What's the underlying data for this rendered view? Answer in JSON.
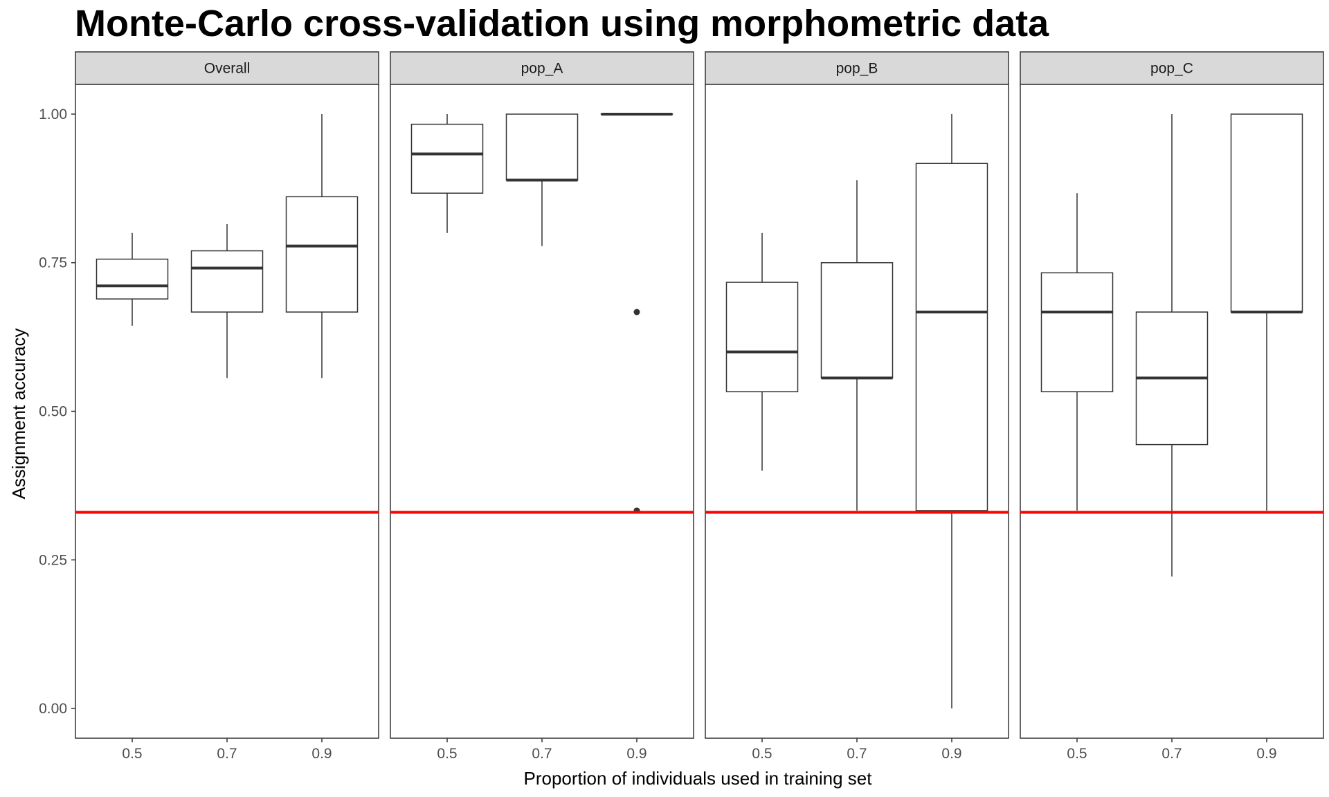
{
  "chart_data": {
    "type": "boxplot",
    "title": "Monte-Carlo cross-validation using morphometric data",
    "xlabel": "Proportion of individuals used in training set",
    "ylabel": "Assignment accuracy",
    "ylim": [
      -0.05,
      1.05
    ],
    "yticks": [
      0,
      0.25,
      0.5,
      0.75,
      1.0
    ],
    "ytick_labels": [
      "0.00",
      "0.25",
      "0.50",
      "0.75",
      "1.00"
    ],
    "categories": [
      "0.5",
      "0.7",
      "0.9"
    ],
    "reference_line": {
      "y": 0.33,
      "color": "#ff0000"
    },
    "grid": false,
    "panels": [
      {
        "name": "Overall",
        "boxes": [
          {
            "x": "0.5",
            "min": 0.644,
            "q1": 0.689,
            "median": 0.711,
            "q3": 0.756,
            "max": 0.8,
            "outliers": []
          },
          {
            "x": "0.7",
            "min": 0.556,
            "q1": 0.667,
            "median": 0.741,
            "q3": 0.77,
            "max": 0.815,
            "outliers": []
          },
          {
            "x": "0.9",
            "min": 0.556,
            "q1": 0.667,
            "median": 0.778,
            "q3": 0.861,
            "max": 1.0,
            "outliers": []
          }
        ]
      },
      {
        "name": "pop_A",
        "boxes": [
          {
            "x": "0.5",
            "min": 0.8,
            "q1": 0.867,
            "median": 0.933,
            "q3": 0.983,
            "max": 1.0,
            "outliers": []
          },
          {
            "x": "0.7",
            "min": 0.778,
            "q1": 0.889,
            "median": 0.889,
            "q3": 1.0,
            "max": 1.0,
            "outliers": []
          },
          {
            "x": "0.9",
            "min": 1.0,
            "q1": 1.0,
            "median": 1.0,
            "q3": 1.0,
            "max": 1.0,
            "outliers": [
              0.667,
              0.333
            ]
          }
        ]
      },
      {
        "name": "pop_B",
        "boxes": [
          {
            "x": "0.5",
            "min": 0.4,
            "q1": 0.533,
            "median": 0.6,
            "q3": 0.717,
            "max": 0.8,
            "outliers": []
          },
          {
            "x": "0.7",
            "min": 0.333,
            "q1": 0.556,
            "median": 0.556,
            "q3": 0.75,
            "max": 0.889,
            "outliers": []
          },
          {
            "x": "0.9",
            "min": 0.0,
            "q1": 0.333,
            "median": 0.667,
            "q3": 0.917,
            "max": 1.0,
            "outliers": []
          }
        ]
      },
      {
        "name": "pop_C",
        "boxes": [
          {
            "x": "0.5",
            "min": 0.333,
            "q1": 0.533,
            "median": 0.667,
            "q3": 0.733,
            "max": 0.867,
            "outliers": []
          },
          {
            "x": "0.7",
            "min": 0.222,
            "q1": 0.444,
            "median": 0.556,
            "q3": 0.667,
            "max": 1.0,
            "outliers": []
          },
          {
            "x": "0.9",
            "min": 0.333,
            "q1": 0.667,
            "median": 0.667,
            "q3": 1.0,
            "max": 1.0,
            "outliers": []
          }
        ]
      }
    ]
  }
}
